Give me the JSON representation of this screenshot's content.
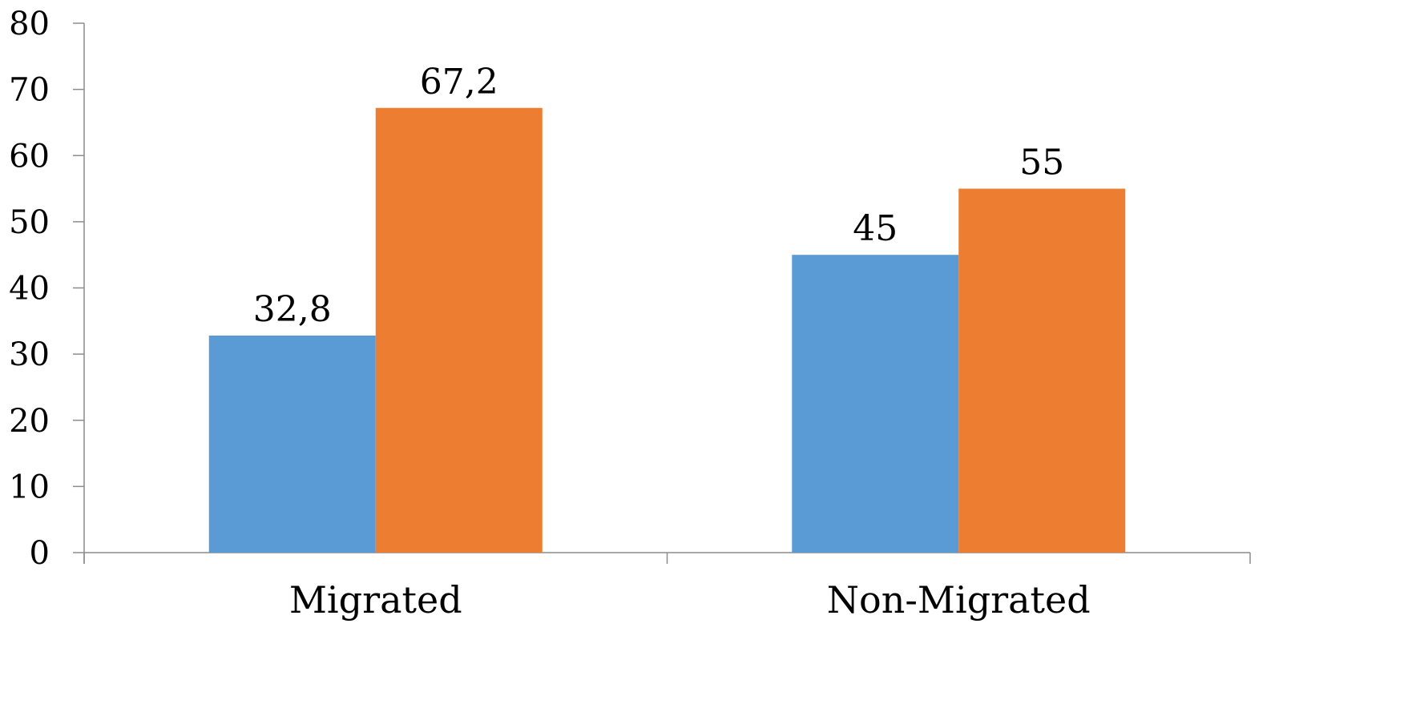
{
  "chart_data": {
    "type": "bar",
    "categories": [
      "Migrated",
      "Non-Migrated"
    ],
    "series": [
      {
        "values": [
          32.8,
          45
        ],
        "color": "#5B9BD5"
      },
      {
        "values": [
          67.2,
          55
        ],
        "color": "#ED7D31"
      }
    ],
    "data_labels": [
      [
        "32,8",
        "45"
      ],
      [
        "67,2",
        "55"
      ]
    ],
    "y_ticks": [
      "0",
      "10",
      "20",
      "30",
      "40",
      "50",
      "60",
      "70",
      "80"
    ],
    "ylim": [
      0,
      80
    ],
    "grid": false,
    "legend": "none",
    "title": "",
    "xlabel": "",
    "ylabel": ""
  }
}
